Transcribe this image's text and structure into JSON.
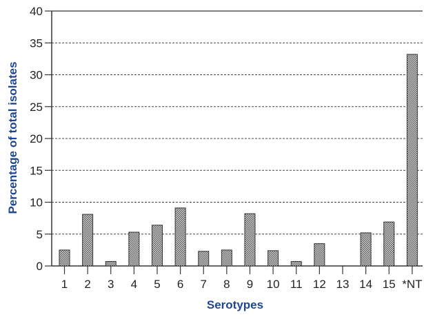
{
  "chart_data": {
    "type": "bar",
    "title": "",
    "xlabel": "Serotypes",
    "ylabel": "Percentage of total isolates",
    "categories": [
      "1",
      "2",
      "3",
      "4",
      "5",
      "6",
      "7",
      "8",
      "9",
      "10",
      "11",
      "12",
      "13",
      "14",
      "15",
      "*NT"
    ],
    "values": [
      2.5,
      8.1,
      0.7,
      5.3,
      6.4,
      9.1,
      2.3,
      2.5,
      8.2,
      2.4,
      0.7,
      3.5,
      0,
      5.2,
      6.9,
      33.2
    ],
    "ylim": [
      0,
      40
    ],
    "yticks": [
      0,
      5,
      10,
      15,
      20,
      25,
      30,
      35,
      40
    ],
    "grid": "horizontal-dashed",
    "legend": "none",
    "colors": {
      "bar_fill": "#8a8a8a",
      "bar_stroke": "#333333",
      "axis": "#333333",
      "grid": "#444444",
      "label": "#1f4690"
    }
  }
}
